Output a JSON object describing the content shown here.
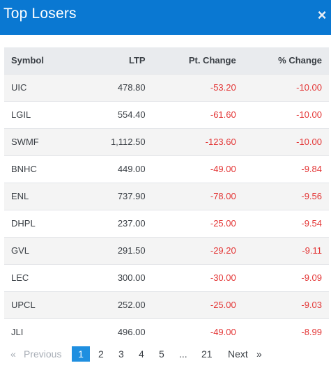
{
  "header": {
    "title": "Top Losers",
    "close_label": "×"
  },
  "table": {
    "columns": [
      "Symbol",
      "LTP",
      "Pt. Change",
      "% Change"
    ],
    "rows": [
      {
        "symbol": "UIC",
        "ltp": "478.80",
        "pt_change": "-53.20",
        "pct_change": "-10.00"
      },
      {
        "symbol": "LGIL",
        "ltp": "554.40",
        "pt_change": "-61.60",
        "pct_change": "-10.00"
      },
      {
        "symbol": "SWMF",
        "ltp": "1,112.50",
        "pt_change": "-123.60",
        "pct_change": "-10.00"
      },
      {
        "symbol": "BNHC",
        "ltp": "449.00",
        "pt_change": "-49.00",
        "pct_change": "-9.84"
      },
      {
        "symbol": "ENL",
        "ltp": "737.90",
        "pt_change": "-78.00",
        "pct_change": "-9.56"
      },
      {
        "symbol": "DHPL",
        "ltp": "237.00",
        "pt_change": "-25.00",
        "pct_change": "-9.54"
      },
      {
        "symbol": "GVL",
        "ltp": "291.50",
        "pt_change": "-29.20",
        "pct_change": "-9.11"
      },
      {
        "symbol": "LEC",
        "ltp": "300.00",
        "pt_change": "-30.00",
        "pct_change": "-9.09"
      },
      {
        "symbol": "UPCL",
        "ltp": "252.00",
        "pt_change": "-25.00",
        "pct_change": "-9.03"
      },
      {
        "symbol": "JLI",
        "ltp": "496.00",
        "pt_change": "-49.00",
        "pct_change": "-8.99"
      }
    ]
  },
  "pagination": {
    "prev_arrow": "«",
    "prev_label": "Previous",
    "pages": [
      "1",
      "2",
      "3",
      "4",
      "5"
    ],
    "ellipsis": "...",
    "last_page": "21",
    "next_label": "Next",
    "next_arrow": "»",
    "current_page": "1"
  },
  "colors": {
    "header_bg": "#0a78d2",
    "negative": "#e33434",
    "active_page_bg": "#1f8fe0"
  }
}
